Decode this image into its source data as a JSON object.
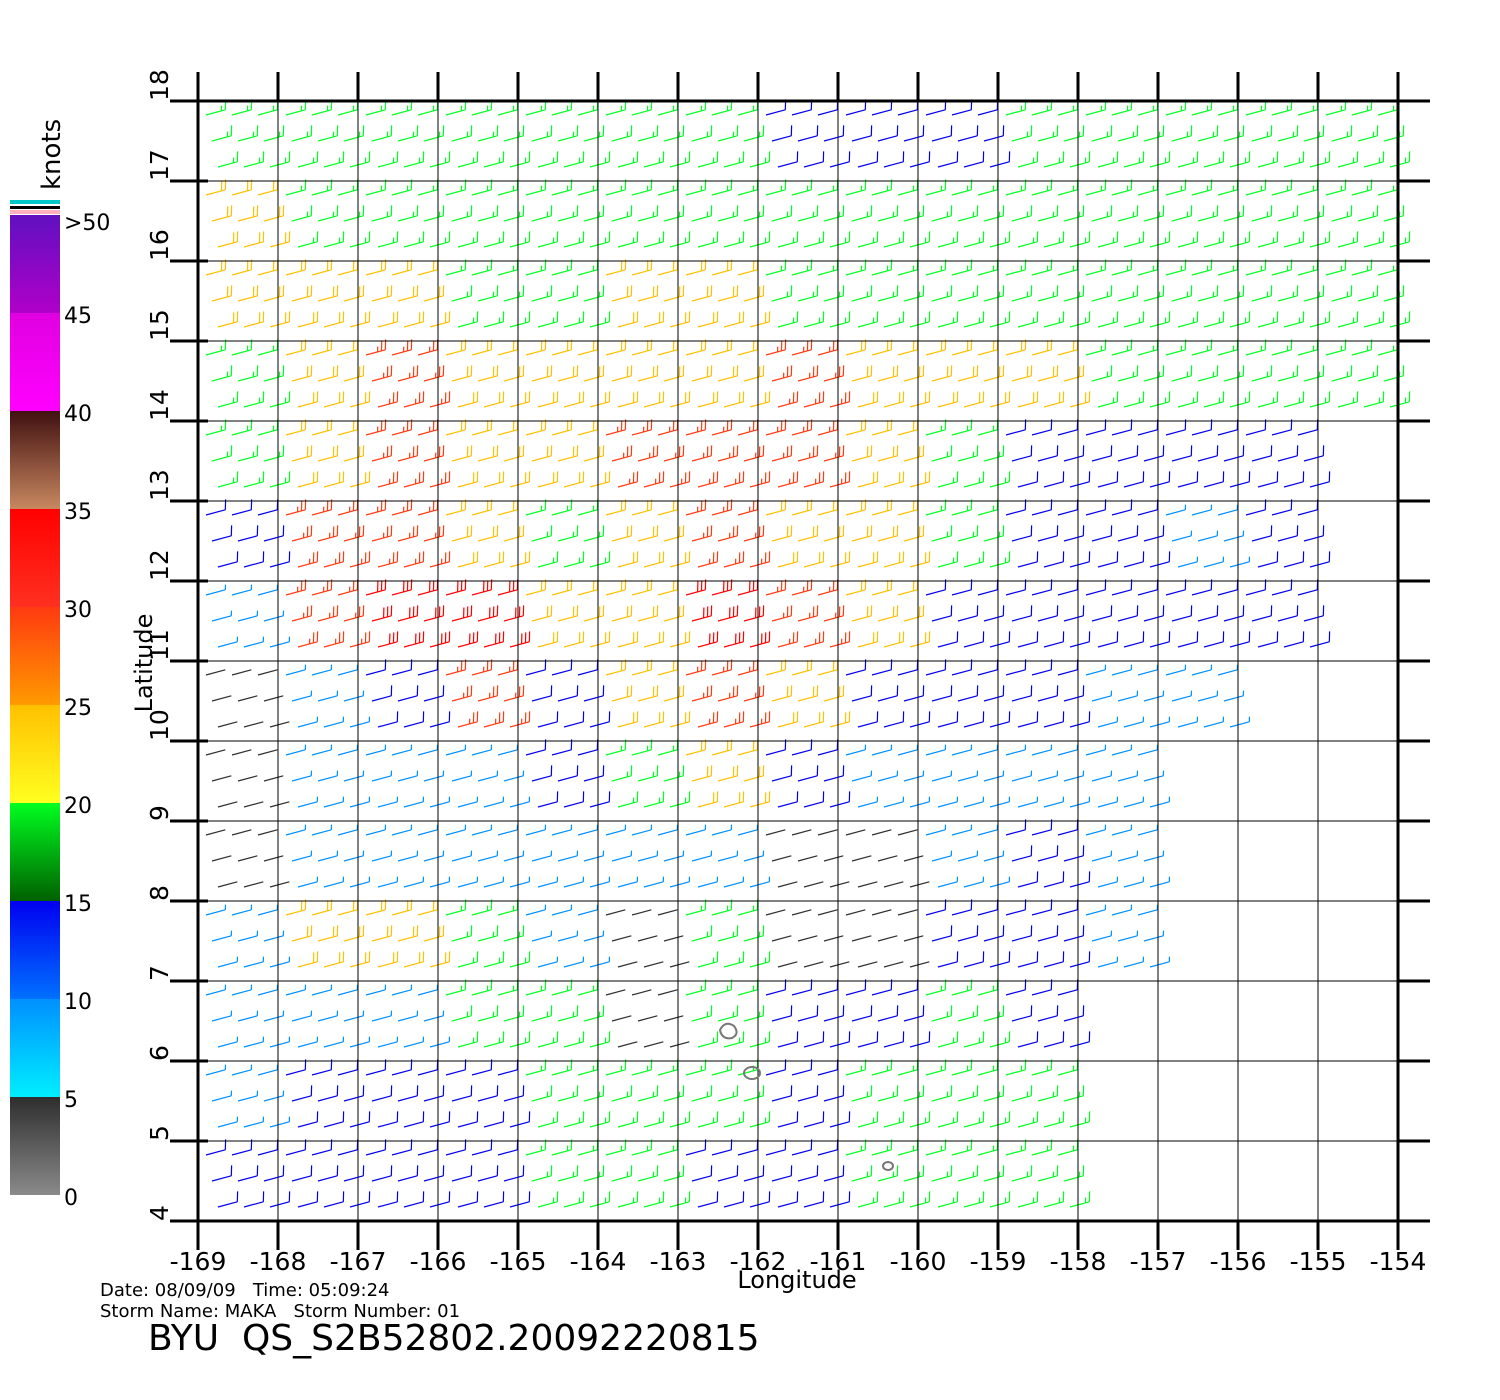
{
  "map": {
    "xlabel": "Longitude",
    "ylabel": "Latitude",
    "xlim": [
      -169,
      -154
    ],
    "ylim": [
      4,
      18
    ],
    "xticks": [
      -169,
      -168,
      -167,
      -166,
      -165,
      -164,
      -163,
      -162,
      -161,
      -160,
      -159,
      -158,
      -157,
      -156,
      -155,
      -154
    ],
    "yticks": [
      4,
      5,
      6,
      7,
      8,
      9,
      10,
      11,
      12,
      13,
      14,
      15,
      16,
      17,
      18
    ],
    "grid": true,
    "wind_speed": {
      "lons": [
        -168.5,
        -167.5,
        -166.5,
        -165.5,
        -164.5,
        -163.5,
        -162.5,
        -161.5,
        -160.5,
        -159.5,
        -158.5,
        -157.5,
        -156.5,
        -155.5,
        -154.5
      ],
      "lats": [
        17.5,
        16.5,
        15.5,
        14.5,
        13.5,
        12.5,
        11.5,
        10.5,
        9.5,
        8.5,
        7.5,
        6.5,
        5.5,
        4.5
      ],
      "values": [
        [
          18,
          18,
          18,
          18,
          18,
          17,
          16,
          14,
          13,
          14,
          16,
          17,
          18,
          18,
          18
        ],
        [
          21,
          19,
          18,
          18,
          18,
          17,
          17,
          17,
          16,
          17,
          18,
          18,
          18,
          18,
          18
        ],
        [
          22,
          22,
          21,
          19,
          19,
          21,
          20,
          18,
          18,
          17,
          17,
          18,
          18,
          18,
          18
        ],
        [
          18,
          22,
          26,
          24,
          23,
          23,
          23,
          25,
          22,
          22,
          20,
          19,
          19,
          18,
          17
        ],
        [
          18,
          23,
          28,
          24,
          24,
          26,
          28,
          25,
          20,
          15,
          14,
          13,
          13,
          12,
          null
        ],
        [
          13,
          25,
          28,
          22,
          18,
          24,
          28,
          22,
          20,
          17,
          13,
          12,
          9,
          10,
          null
        ],
        [
          7,
          25,
          30,
          30,
          20,
          24,
          30,
          28,
          23,
          13,
          13,
          14,
          12,
          11,
          null
        ],
        [
          4,
          8,
          12,
          25,
          14,
          24,
          26,
          20,
          12,
          11,
          10,
          9,
          8,
          null,
          null
        ],
        [
          4,
          7,
          9,
          8,
          13,
          16,
          23,
          13,
          8,
          7,
          8,
          8,
          null,
          null,
          null
        ],
        [
          4,
          6,
          7,
          7,
          6,
          5,
          5,
          4,
          4,
          5,
          13,
          7,
          null,
          null,
          null
        ],
        [
          5,
          21,
          22,
          18,
          6,
          4,
          15,
          4,
          4,
          12,
          13,
          7,
          null,
          null,
          null
        ],
        [
          5,
          7,
          9,
          17,
          18,
          4,
          18,
          14,
          12,
          17,
          14,
          null,
          null,
          null,
          null
        ],
        [
          7,
          12,
          13,
          14,
          16,
          18,
          16,
          10,
          17,
          16,
          15,
          null,
          null,
          null,
          null
        ],
        [
          12,
          14,
          12,
          13,
          16,
          15,
          13,
          14,
          15,
          15,
          15,
          null,
          null,
          null,
          null
        ]
      ]
    },
    "colorbar": {
      "title": "knots",
      "ticks": [
        0,
        5,
        10,
        15,
        20,
        25,
        30,
        35,
        40,
        45,
        {
          "value": 50,
          "label": ">50"
        }
      ],
      "colors": [
        [
          "#8a8a8a",
          "#2e2e2e"
        ],
        [
          "#00eeff",
          "#0090ff"
        ],
        [
          "#0070ff",
          "#0000f0"
        ],
        [
          "#006000",
          "#00ff20"
        ],
        [
          "#ffff20",
          "#ffc000"
        ],
        [
          "#ff9a00",
          "#ff3a10"
        ],
        [
          "#ff3020",
          "#ff0000"
        ],
        [
          "#c88860",
          "#401010"
        ],
        [
          "#ff00ff",
          "#e000e0"
        ],
        [
          "#b000c8",
          "#6010c0"
        ]
      ]
    }
  },
  "footer": {
    "line1": "Date: 08/09/09   Time: 05:09:24",
    "line2": "Storm Name: MAKA   Storm Number: 01",
    "title": "BYU  QS_S2B52802.20092220815"
  }
}
